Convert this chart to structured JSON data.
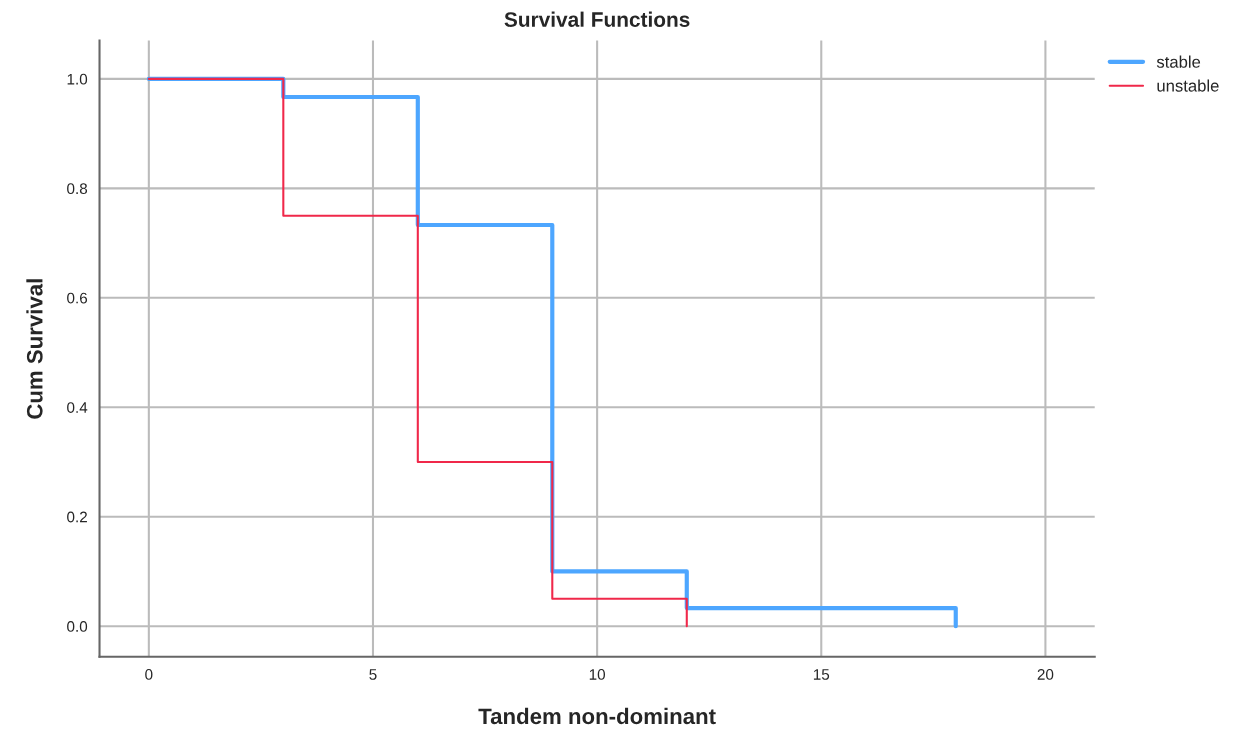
{
  "chart_data": {
    "type": "step",
    "title": "Survival Functions",
    "xlabel": "Tandem non-dominant",
    "ylabel": "Cum Survival",
    "series": [
      {
        "name": "stable",
        "color": "#4da6ff",
        "x": [
          0,
          3,
          6,
          9,
          12,
          18
        ],
        "values": [
          1.0,
          0.967,
          0.733,
          0.1,
          0.033,
          0.0
        ]
      },
      {
        "name": "unstable",
        "color": "#f0284a",
        "x": [
          0,
          3,
          6,
          9,
          12
        ],
        "values": [
          1.0,
          0.75,
          0.3,
          0.05,
          0.0
        ]
      }
    ],
    "xlim": [
      -1.1,
      21.1
    ],
    "xticks": [
      0,
      5,
      10,
      15,
      20
    ],
    "ylim": [
      -0.056,
      1.07
    ],
    "yticks": [
      {
        "value": 0,
        "label": "0.0"
      },
      {
        "value": 0.2,
        "label": "0.2"
      },
      {
        "value": 0.4,
        "label": "0.4"
      },
      {
        "value": 0.6,
        "label": "0.6"
      },
      {
        "value": 0.8,
        "label": "0.8"
      },
      {
        "value": 1.0,
        "label": "1.0"
      }
    ],
    "grid": true,
    "legend": "top right"
  }
}
